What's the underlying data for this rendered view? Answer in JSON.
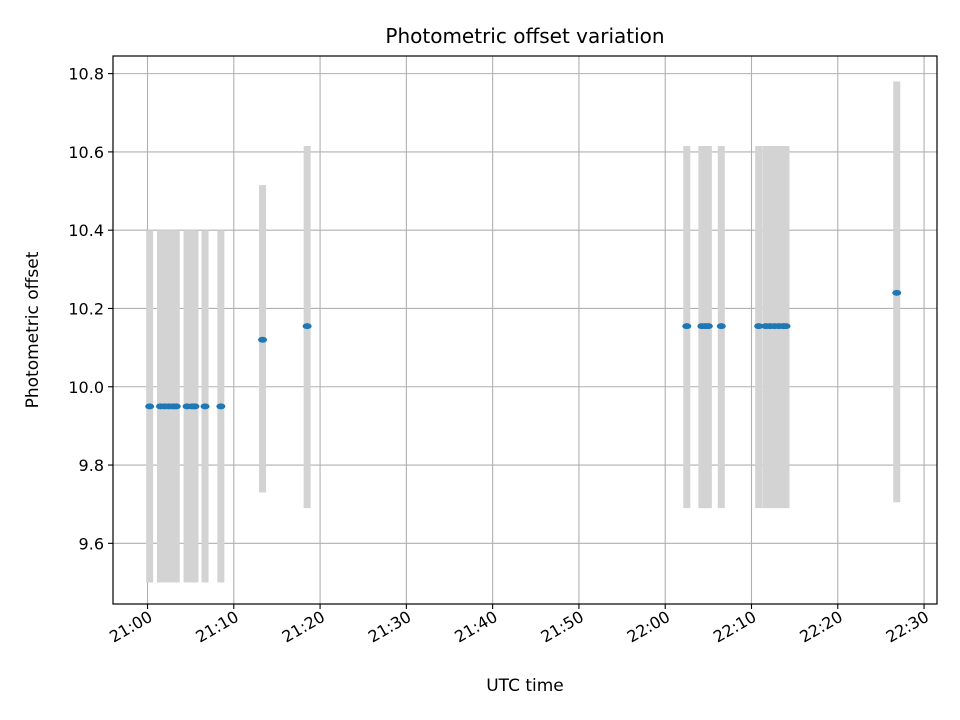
{
  "chart_data": {
    "type": "scatter",
    "title": "Photometric offset variation",
    "xlabel": "UTC time",
    "ylabel": "Photometric offset",
    "x_axis": "time",
    "xlim": [
      "20:56:00",
      "22:31:30"
    ],
    "ylim": [
      9.445,
      10.845
    ],
    "x_ticks": [
      "21:00",
      "21:10",
      "21:20",
      "21:30",
      "21:40",
      "21:50",
      "22:00",
      "22:10",
      "22:20",
      "22:30"
    ],
    "y_ticks": [
      9.6,
      9.8,
      10.0,
      10.2,
      10.4,
      10.6,
      10.8
    ],
    "y_tick_labels": [
      "9.6",
      "9.8",
      "10.0",
      "10.2",
      "10.4",
      "10.6",
      "10.8"
    ],
    "grid": true,
    "colors": {
      "point": "#1f77b4",
      "error_bar": "#d3d3d3",
      "grid": "#b0b0b0"
    },
    "points": [
      {
        "time": "21:00:15",
        "y": 9.95,
        "low": 9.5,
        "high": 10.4
      },
      {
        "time": "21:01:30",
        "y": 9.95,
        "low": 9.5,
        "high": 10.4
      },
      {
        "time": "21:02:00",
        "y": 9.95,
        "low": 9.5,
        "high": 10.4
      },
      {
        "time": "21:02:30",
        "y": 9.95,
        "low": 9.5,
        "high": 10.4
      },
      {
        "time": "21:03:00",
        "y": 9.95,
        "low": 9.5,
        "high": 10.4
      },
      {
        "time": "21:03:20",
        "y": 9.95,
        "low": 9.5,
        "high": 10.4
      },
      {
        "time": "21:04:35",
        "y": 9.95,
        "low": 9.5,
        "high": 10.4
      },
      {
        "time": "21:05:10",
        "y": 9.95,
        "low": 9.5,
        "high": 10.4
      },
      {
        "time": "21:05:30",
        "y": 9.95,
        "low": 9.5,
        "high": 10.4
      },
      {
        "time": "21:06:40",
        "y": 9.95,
        "low": 9.5,
        "high": 10.4
      },
      {
        "time": "21:08:30",
        "y": 9.95,
        "low": 9.5,
        "high": 10.4
      },
      {
        "time": "21:13:20",
        "y": 10.12,
        "low": 9.73,
        "high": 10.515
      },
      {
        "time": "21:18:30",
        "y": 10.155,
        "low": 9.69,
        "high": 10.615
      },
      {
        "time": "22:02:30",
        "y": 10.155,
        "low": 9.69,
        "high": 10.615
      },
      {
        "time": "22:04:15",
        "y": 10.155,
        "low": 9.69,
        "high": 10.615
      },
      {
        "time": "22:04:40",
        "y": 10.155,
        "low": 9.69,
        "high": 10.615
      },
      {
        "time": "22:05:00",
        "y": 10.155,
        "low": 9.69,
        "high": 10.615
      },
      {
        "time": "22:06:30",
        "y": 10.155,
        "low": 9.69,
        "high": 10.615
      },
      {
        "time": "22:10:50",
        "y": 10.155,
        "low": 9.69,
        "high": 10.615
      },
      {
        "time": "22:11:40",
        "y": 10.155,
        "low": 9.69,
        "high": 10.615
      },
      {
        "time": "22:12:10",
        "y": 10.155,
        "low": 9.69,
        "high": 10.615
      },
      {
        "time": "22:12:40",
        "y": 10.155,
        "low": 9.69,
        "high": 10.615
      },
      {
        "time": "22:13:10",
        "y": 10.155,
        "low": 9.69,
        "high": 10.615
      },
      {
        "time": "22:13:40",
        "y": 10.155,
        "low": 9.69,
        "high": 10.615
      },
      {
        "time": "22:14:00",
        "y": 10.155,
        "low": 9.69,
        "high": 10.615
      },
      {
        "time": "22:26:50",
        "y": 10.24,
        "low": 9.705,
        "high": 10.78
      }
    ]
  }
}
